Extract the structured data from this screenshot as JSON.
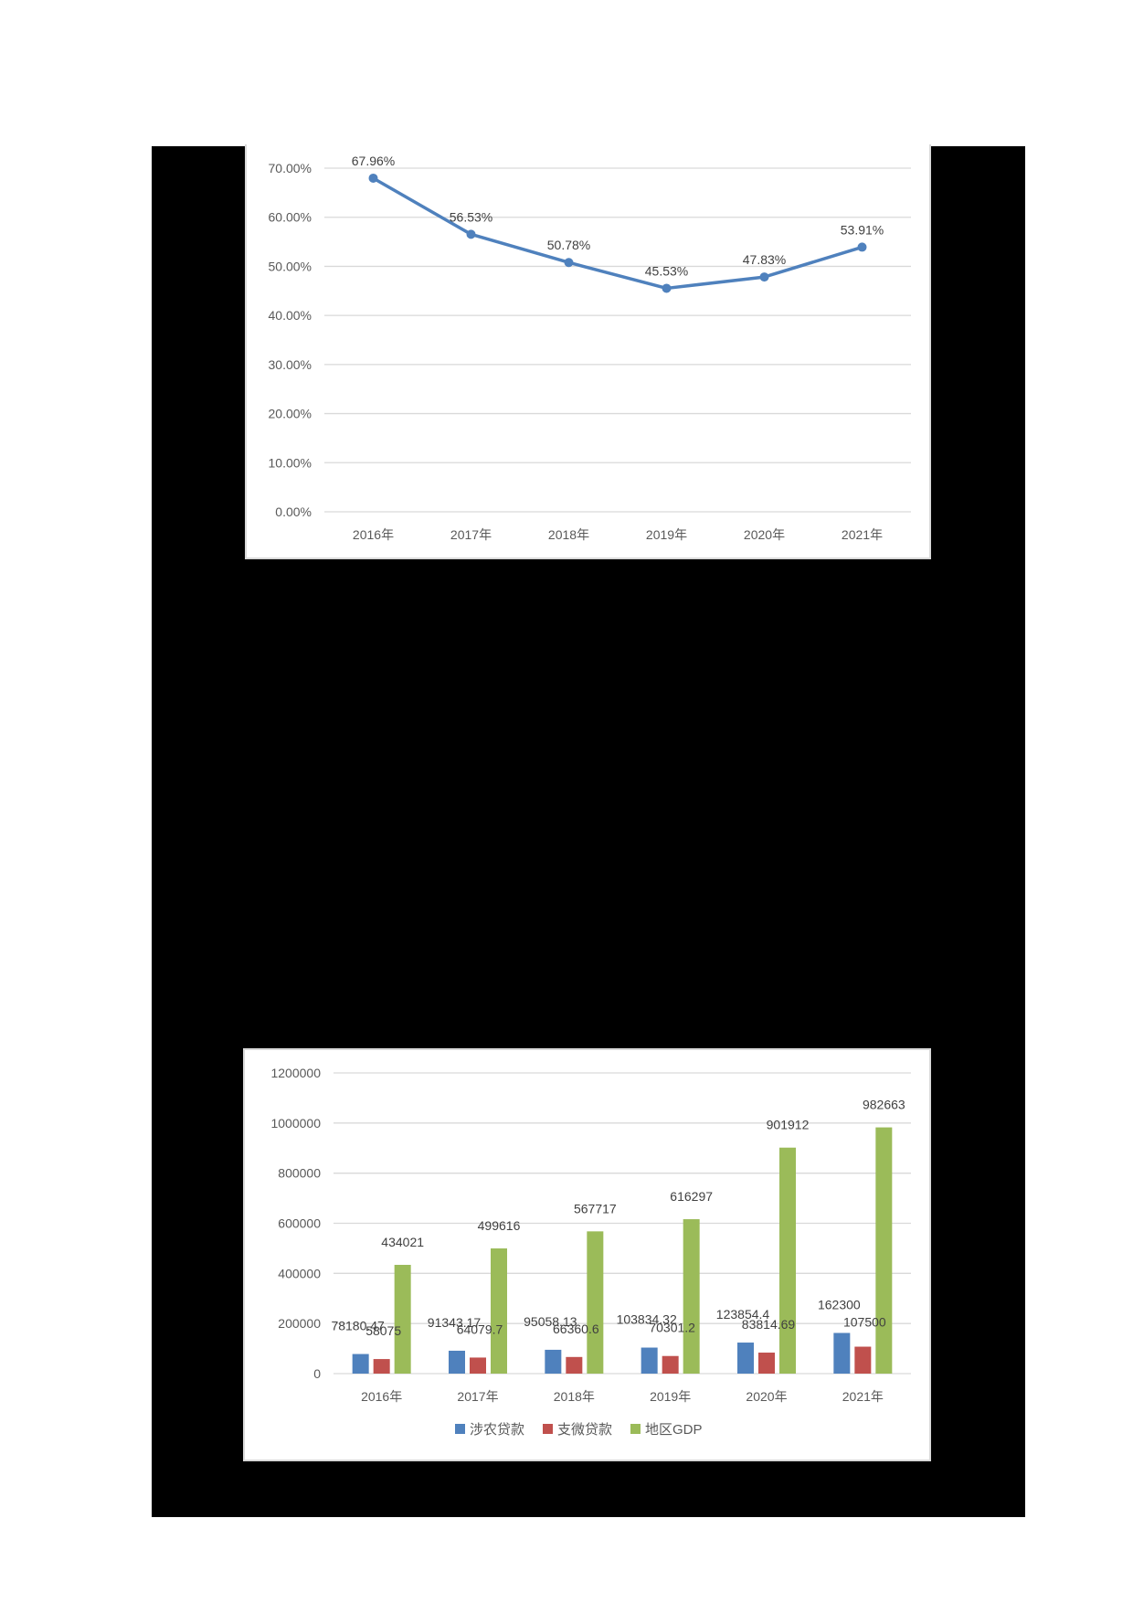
{
  "colors": {
    "background": "#ffffff",
    "panel": "#000000",
    "gridline": "#d9d9d9",
    "axis_text": "#595959",
    "label_text": "#404040",
    "line_series": "#4f81bd"
  },
  "chart_data": [
    {
      "type": "line",
      "title": "",
      "xlabel": "",
      "ylabel": "",
      "categories": [
        "2016年",
        "2017年",
        "2018年",
        "2019年",
        "2020年",
        "2021年"
      ],
      "values": [
        67.96,
        56.53,
        50.78,
        45.53,
        47.83,
        53.91
      ],
      "value_labels": [
        "67.96%",
        "56.53%",
        "50.78%",
        "45.53%",
        "47.83%",
        "53.91%"
      ],
      "y_ticks": [
        "0.00%",
        "10.00%",
        "20.00%",
        "30.00%",
        "40.00%",
        "50.00%",
        "60.00%",
        "70.00%"
      ],
      "ylim": [
        0,
        70
      ],
      "grid": true,
      "legend": null,
      "series_color": "#4f81bd"
    },
    {
      "type": "bar",
      "title": "",
      "xlabel": "",
      "ylabel": "",
      "categories": [
        "2016年",
        "2017年",
        "2018年",
        "2019年",
        "2020年",
        "2021年"
      ],
      "series": [
        {
          "name": "涉农贷款",
          "color": "#4f81bd",
          "values": [
            78180.47,
            91343.17,
            95058.13,
            103834.32,
            123854.4,
            162300
          ],
          "labels": [
            "78180.47",
            "91343.17",
            "95058.13",
            "103834.32",
            "123854.4",
            "162300"
          ]
        },
        {
          "name": "支微贷款",
          "color": "#c0504d",
          "values": [
            58075,
            64079.7,
            66360.6,
            70301.2,
            83814.69,
            107500
          ],
          "labels": [
            "58075",
            "64079.7",
            "66360.6",
            "70301.2",
            "83814.69",
            "107500"
          ]
        },
        {
          "name": "地区GDP",
          "color": "#9bbb59",
          "values": [
            434021,
            499616,
            567717,
            616297,
            901912,
            982663
          ],
          "labels": [
            "434021",
            "499616",
            "567717",
            "616297",
            "901912",
            "982663"
          ]
        }
      ],
      "y_ticks": [
        "0",
        "200000",
        "400000",
        "600000",
        "800000",
        "1000000",
        "1200000"
      ],
      "ylim": [
        0,
        1200000
      ],
      "grid": true,
      "legend": {
        "position": "bottom",
        "entries": [
          "涉农贷款",
          "支微贷款",
          "地区GDP"
        ]
      }
    }
  ]
}
